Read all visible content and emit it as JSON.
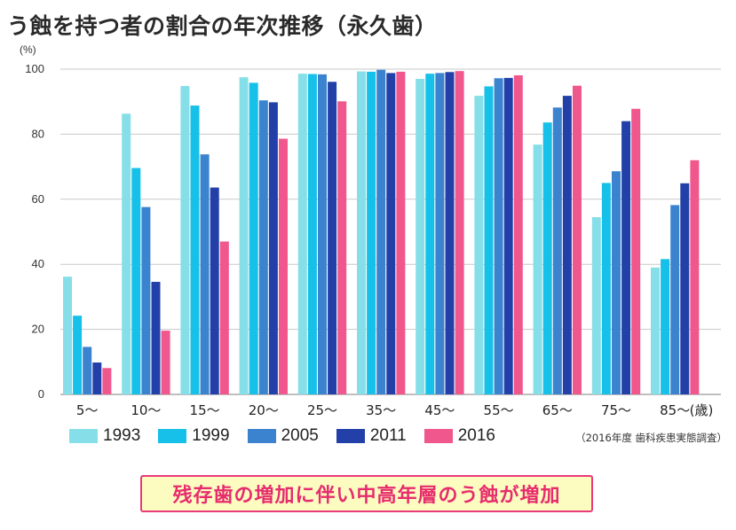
{
  "title": "う蝕を持つ者の割合の年次推移（永久歯）",
  "source": "（2016年度 歯科疾患実態調査）",
  "banner": "残存歯の増加に伴い中高年層のう蝕が増加",
  "colors": {
    "accent": "#e62c6e",
    "banner_bg": "#fdfcc0",
    "series": [
      "#86dfe8",
      "#16c0e8",
      "#3b83cf",
      "#2240a8",
      "#f0578c"
    ]
  },
  "chart_data": {
    "type": "bar",
    "title": "う蝕を持つ者の割合の年次推移（永久歯）",
    "ylabel": "(%)",
    "xlabel": "(歳)",
    "ylim": [
      0,
      100
    ],
    "yticks": [
      "0",
      "20",
      "40",
      "60",
      "80",
      "100"
    ],
    "grid": "horizontal",
    "legend": "bottom",
    "categories": [
      "5〜",
      "10〜",
      "15〜",
      "20〜",
      "25〜",
      "35〜",
      "45〜",
      "55〜",
      "65〜",
      "75〜",
      "85〜"
    ],
    "series": [
      {
        "name": "1993",
        "values": [
          36.2,
          86.3,
          94.8,
          97.5,
          98.6,
          99.3,
          97.0,
          91.8,
          76.8,
          54.5,
          39.0
        ]
      },
      {
        "name": "1999",
        "values": [
          24.2,
          69.6,
          88.8,
          95.8,
          98.5,
          99.2,
          98.6,
          94.7,
          83.6,
          65.0,
          41.6
        ]
      },
      {
        "name": "2005",
        "values": [
          14.6,
          57.6,
          73.8,
          90.4,
          98.4,
          99.8,
          98.8,
          97.2,
          88.2,
          68.6,
          58.2
        ]
      },
      {
        "name": "2011",
        "values": [
          9.8,
          34.6,
          63.6,
          89.8,
          96.1,
          98.8,
          99.1,
          97.3,
          91.8,
          84.0,
          64.9
        ]
      },
      {
        "name": "2016",
        "values": [
          8.1,
          19.6,
          47.0,
          78.6,
          90.1,
          99.2,
          99.4,
          98.1,
          94.9,
          87.8,
          72.0
        ]
      }
    ]
  }
}
